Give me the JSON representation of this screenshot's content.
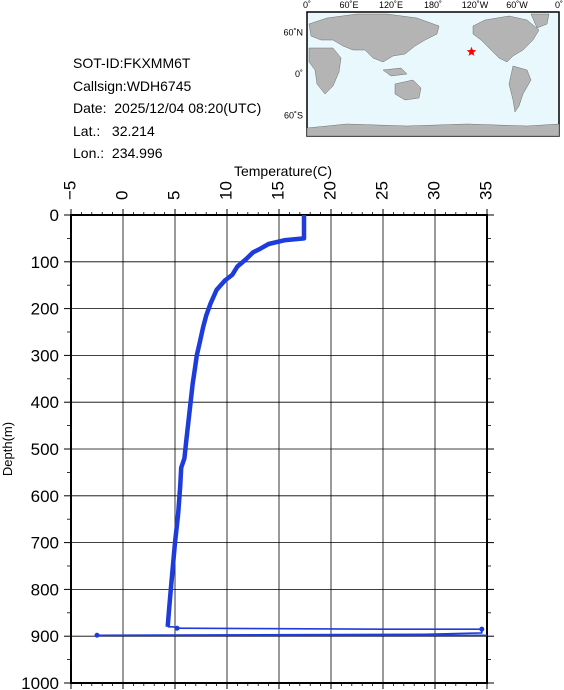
{
  "info": {
    "sot_id": "SOT-ID:FKXMM6T",
    "callsign": "Callsign:WDH6745",
    "date": "Date:  2025/12/04 08:20(UTC)",
    "lat": "Lat.:   32.214",
    "lon": "Lon.:  234.996"
  },
  "map": {
    "top_labels": [
      "0˚",
      "60˚E",
      "120˚E",
      "180˚",
      "120˚W",
      "60˚W",
      "0˚"
    ],
    "left_labels": [
      "60˚N",
      "0˚",
      "60˚S"
    ],
    "ocean_color": "#e8f8fc",
    "land_color": "#b4b4b4",
    "marker_color": "#ff0000",
    "marker_lon": 234.996,
    "marker_lat": 32.214
  },
  "chart_data": {
    "type": "line",
    "xlabel": "Temperature(C)",
    "ylabel": "Depth(m)",
    "xlim": [
      -5,
      35
    ],
    "ylim": [
      1000,
      0
    ],
    "x_ticks": [
      -5,
      0,
      5,
      10,
      15,
      20,
      25,
      30,
      35
    ],
    "x_tick_labels": [
      "−5",
      "0",
      "5",
      "10",
      "15",
      "20",
      "25",
      "30",
      "35"
    ],
    "y_ticks": [
      0,
      100,
      200,
      300,
      400,
      500,
      600,
      700,
      800,
      900,
      1000
    ],
    "y_tick_labels": [
      "0",
      "100",
      "200",
      "300",
      "400",
      "500",
      "600",
      "700",
      "800",
      "900",
      "1000"
    ],
    "grid": true,
    "line_color": "#1e3cdc",
    "series": [
      {
        "values_xy": [
          [
            17.4,
            0
          ],
          [
            17.4,
            50
          ],
          [
            15.5,
            54
          ],
          [
            14.0,
            62
          ],
          [
            13.2,
            72
          ],
          [
            12.5,
            80
          ],
          [
            11.8,
            95
          ],
          [
            11.0,
            110
          ],
          [
            10.5,
            128
          ],
          [
            9.8,
            140
          ],
          [
            9.0,
            160
          ],
          [
            8.4,
            190
          ],
          [
            8.0,
            215
          ],
          [
            7.7,
            240
          ],
          [
            7.4,
            270
          ],
          [
            7.1,
            300
          ],
          [
            6.9,
            330
          ],
          [
            6.7,
            360
          ],
          [
            6.5,
            400
          ],
          [
            6.3,
            440
          ],
          [
            6.1,
            480
          ],
          [
            5.9,
            520
          ],
          [
            5.6,
            540
          ],
          [
            5.5,
            580
          ],
          [
            5.3,
            640
          ],
          [
            5.0,
            700
          ],
          [
            4.8,
            750
          ],
          [
            4.6,
            800
          ],
          [
            4.4,
            850
          ],
          [
            4.3,
            880
          ]
        ]
      },
      {
        "values_xy": [
          [
            4.3,
            880
          ],
          [
            4.8,
            880
          ],
          [
            5.2,
            883
          ],
          [
            25,
            885
          ],
          [
            34.5,
            885
          ],
          [
            34.5,
            893
          ],
          [
            29,
            896
          ],
          [
            -2.5,
            898
          ]
        ]
      }
    ]
  }
}
